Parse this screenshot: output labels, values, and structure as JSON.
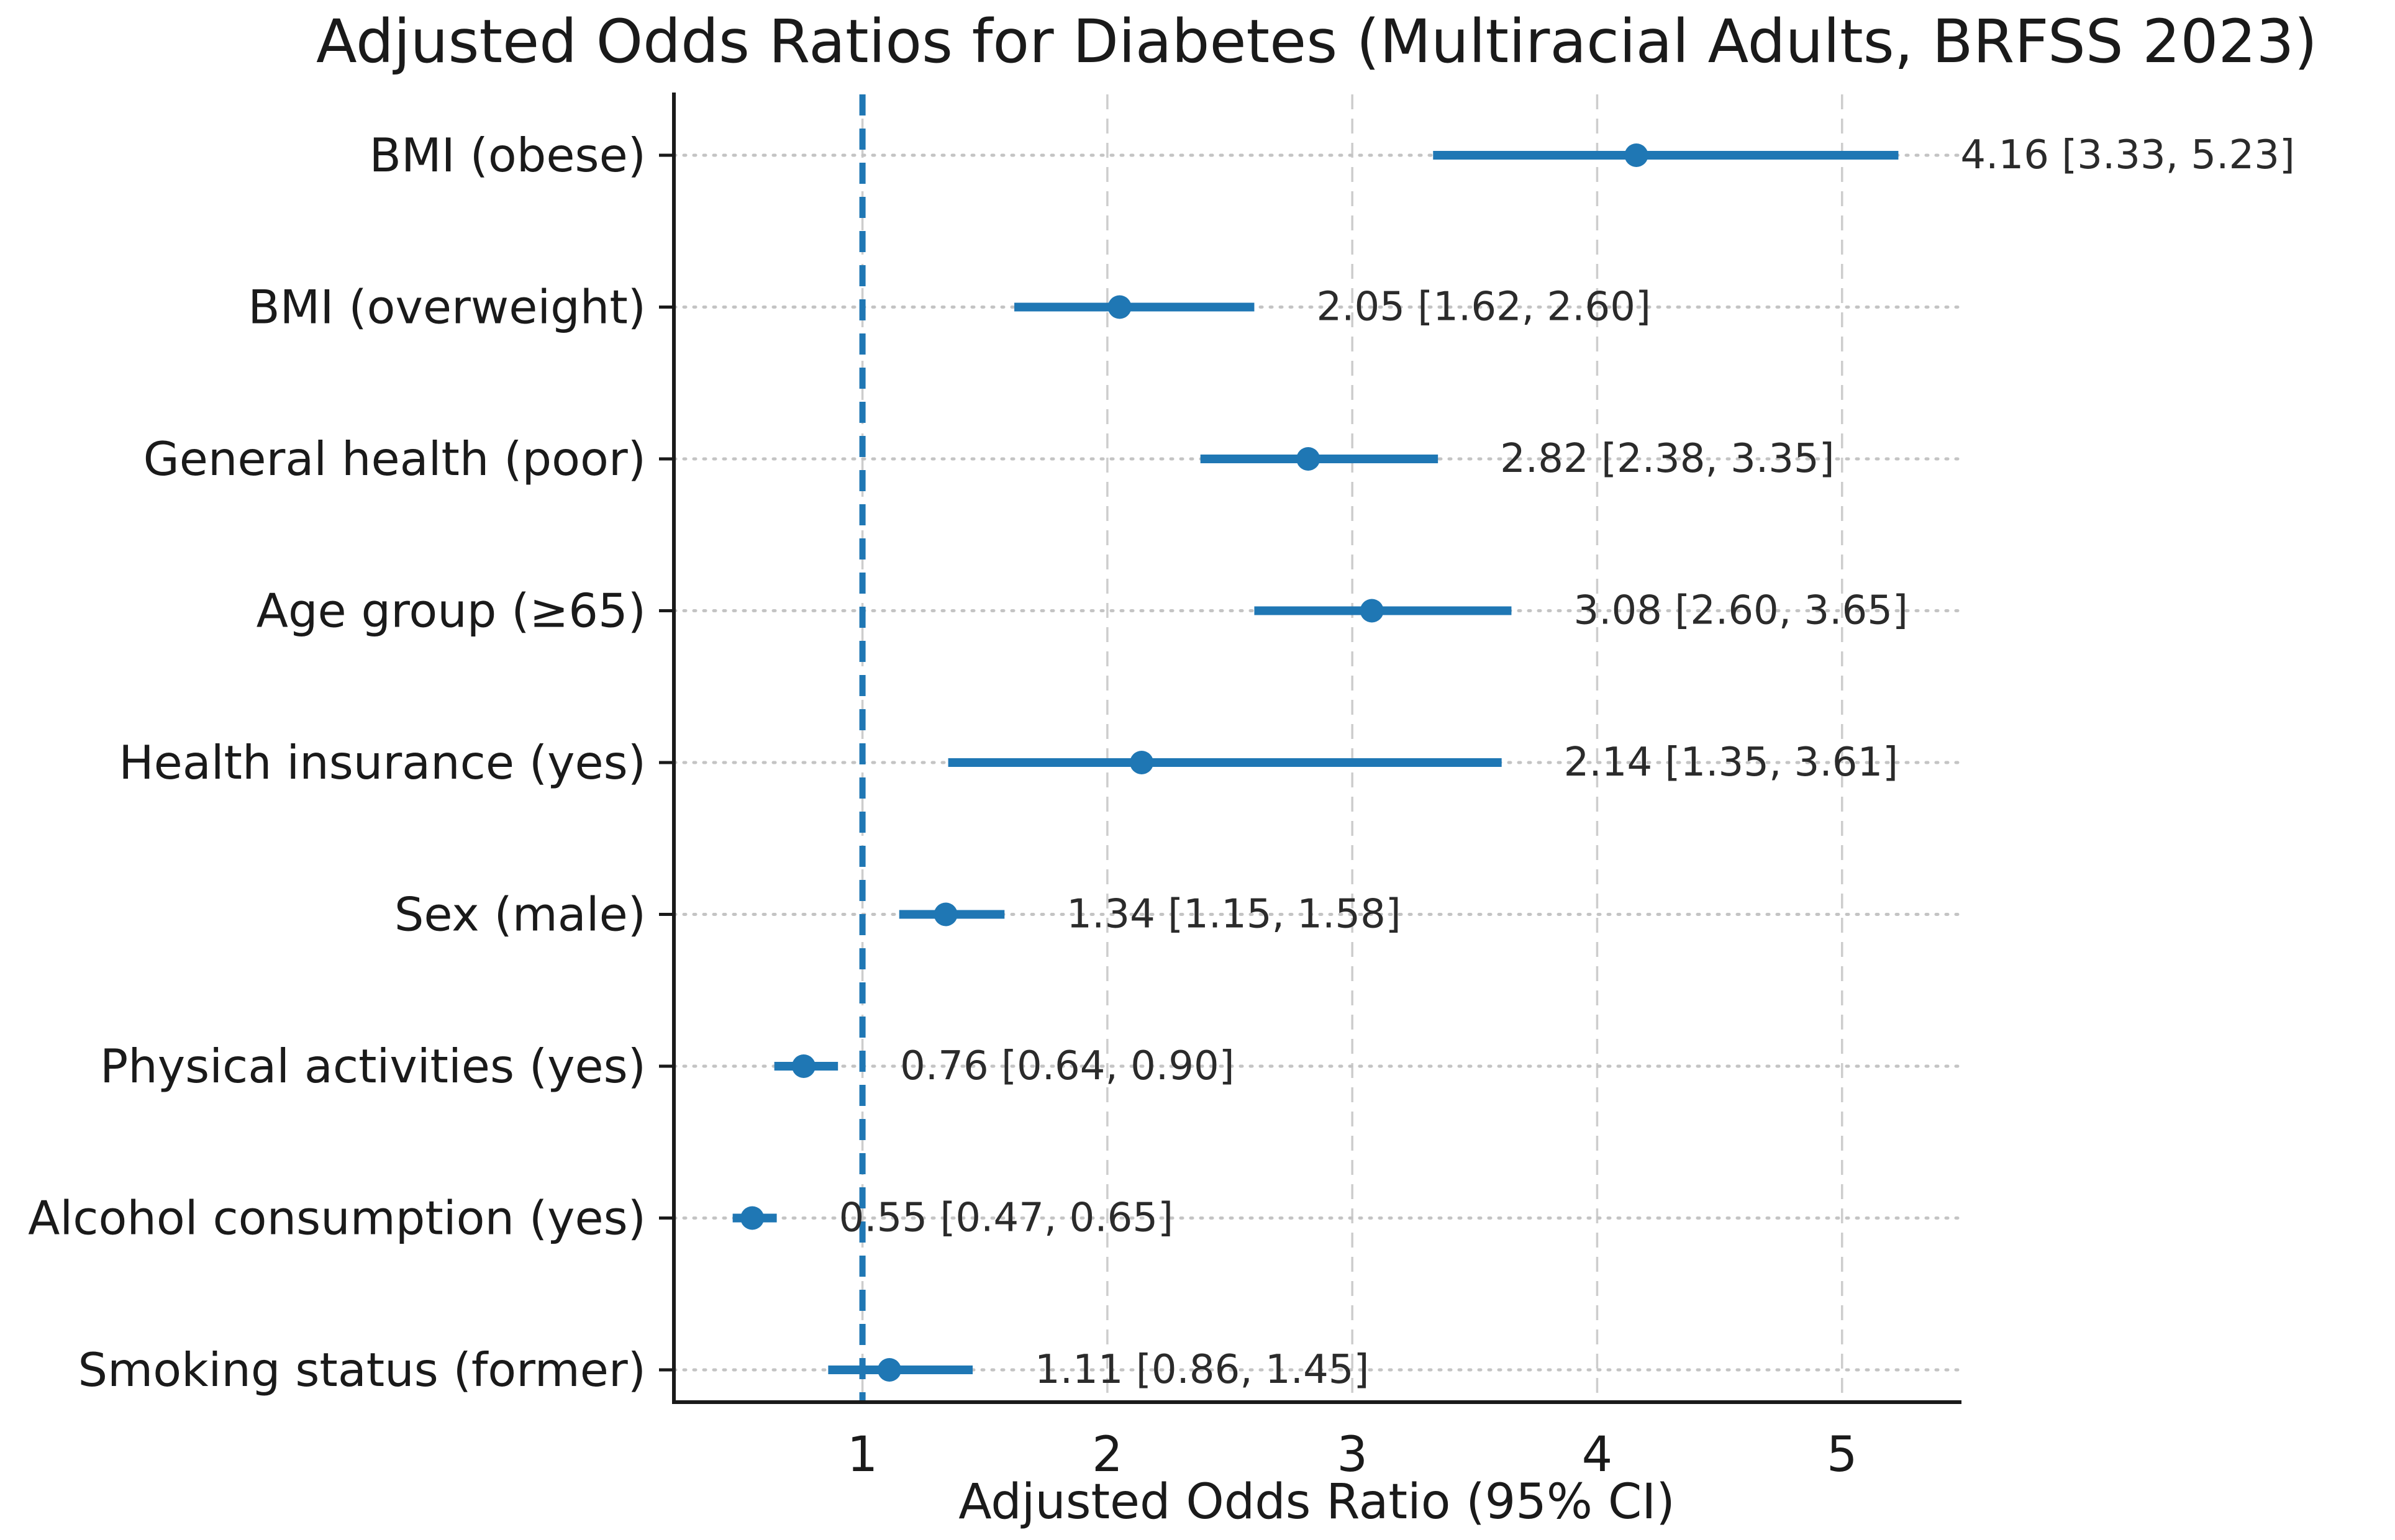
{
  "chart_data": {
    "type": "scatter",
    "variant": "forest-plot",
    "title": "Adjusted Odds Ratios for Diabetes (Multiracial Adults, BRFSS 2023)",
    "xlabel": "Adjusted Odds Ratio (95% CI)",
    "xlim": [
      0.23,
      5.48
    ],
    "xticks": [
      "1",
      "2",
      "3",
      "4",
      "5"
    ],
    "xtick_values": [
      1,
      2,
      3,
      4,
      5
    ],
    "reference_line": {
      "x": 1,
      "style": "dashed"
    },
    "grid": {
      "horizontal": "dotted",
      "vertical": "dashed",
      "shown": true
    },
    "legend": null,
    "rows": [
      {
        "label": "BMI (obese)",
        "or": 4.16,
        "ci_low": 3.33,
        "ci_high": 5.23,
        "annotation": "4.16 [3.33, 5.23]"
      },
      {
        "label": "BMI (overweight)",
        "or": 2.05,
        "ci_low": 1.62,
        "ci_high": 2.6,
        "annotation": "2.05 [1.62, 2.60]"
      },
      {
        "label": "General health (poor)",
        "or": 2.82,
        "ci_low": 2.38,
        "ci_high": 3.35,
        "annotation": "2.82 [2.38, 3.35]"
      },
      {
        "label": "Age group (≥65)",
        "or": 3.08,
        "ci_low": 2.6,
        "ci_high": 3.65,
        "annotation": "3.08 [2.60, 3.65]"
      },
      {
        "label": "Health insurance (yes)",
        "or": 2.14,
        "ci_low": 1.35,
        "ci_high": 3.61,
        "annotation": "2.14 [1.35, 3.61]"
      },
      {
        "label": "Sex (male)",
        "or": 1.34,
        "ci_low": 1.15,
        "ci_high": 1.58,
        "annotation": "1.34 [1.15, 1.58]"
      },
      {
        "label": "Physical activities (yes)",
        "or": 0.76,
        "ci_low": 0.64,
        "ci_high": 0.9,
        "annotation": "0.76 [0.64, 0.90]"
      },
      {
        "label": "Alcohol consumption (yes)",
        "or": 0.55,
        "ci_low": 0.47,
        "ci_high": 0.65,
        "annotation": "0.55 [0.47, 0.65]"
      },
      {
        "label": "Smoking status (former)",
        "or": 1.11,
        "ci_low": 0.86,
        "ci_high": 1.45,
        "annotation": "1.11 [0.86, 1.45]"
      }
    ],
    "colors": {
      "marker": "#1f77b4",
      "ci_line": "#1f77b4",
      "reference_line": "#1f77b4",
      "grid_horizontal": "#c4c4c4",
      "grid_vertical": "#cdcdcd",
      "text": "#1a1a1a",
      "annotation_text": "#2b2b2b",
      "spine": "#1a1a1a",
      "background": "#ffffff"
    }
  }
}
